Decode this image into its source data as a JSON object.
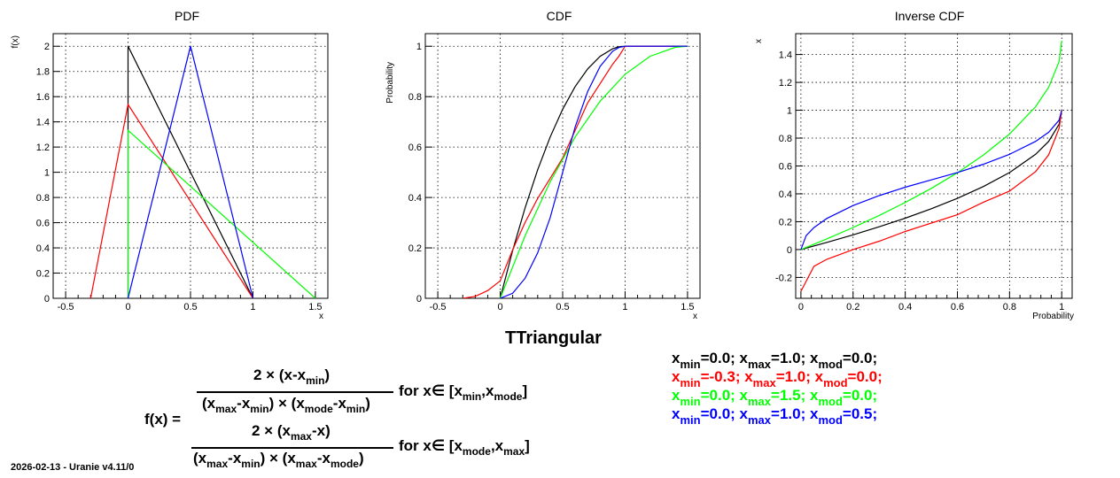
{
  "chart_data": [
    {
      "type": "line",
      "title": "PDF",
      "xlabel": "x",
      "ylabel": "f(x)",
      "xlim": [
        -0.6,
        1.6
      ],
      "ylim": [
        0,
        2.1
      ],
      "xticks": [
        -0.5,
        0,
        0.5,
        1,
        1.5
      ],
      "xtick_labels": [
        "-0.5",
        "0",
        "0.5",
        "1",
        "1.5"
      ],
      "yticks": [
        0,
        0.2,
        0.4,
        0.6,
        0.8,
        1,
        1.2,
        1.4,
        1.6,
        1.8,
        2
      ],
      "ytick_labels": [
        "0",
        "0.2",
        "0.4",
        "0.6",
        "0.8",
        "1",
        "1.2",
        "1.4",
        "1.6",
        "1.8",
        "2"
      ],
      "grid": true,
      "series": [
        {
          "color": "#000000",
          "x": [
            0,
            0,
            1
          ],
          "y": [
            0,
            2.0,
            0
          ]
        },
        {
          "color": "#ff0000",
          "x": [
            -0.3,
            0,
            1
          ],
          "y": [
            0,
            1.538,
            0
          ]
        },
        {
          "color": "#00ff00",
          "x": [
            0,
            0,
            1.5
          ],
          "y": [
            0,
            1.333,
            0
          ]
        },
        {
          "color": "#0000ff",
          "x": [
            0,
            0.5,
            1
          ],
          "y": [
            0,
            2.0,
            0
          ]
        }
      ]
    },
    {
      "type": "line",
      "title": "CDF",
      "xlabel": "x",
      "ylabel": "Probability",
      "xlim": [
        -0.6,
        1.6
      ],
      "ylim": [
        0,
        1.05
      ],
      "xticks": [
        -0.5,
        0,
        0.5,
        1,
        1.5
      ],
      "xtick_labels": [
        "-0.5",
        "0",
        "0.5",
        "1",
        "1.5"
      ],
      "yticks": [
        0,
        0.2,
        0.4,
        0.6,
        0.8,
        1
      ],
      "ytick_labels": [
        "0",
        "0.2",
        "0.4",
        "0.6",
        "0.8",
        "1"
      ],
      "grid": true,
      "series": [
        {
          "color": "#000000",
          "x": [
            0,
            0.1,
            0.2,
            0.3,
            0.4,
            0.5,
            0.6,
            0.7,
            0.8,
            0.9,
            0.95,
            1.0,
            1.5
          ],
          "y": [
            0,
            0.19,
            0.36,
            0.51,
            0.64,
            0.75,
            0.84,
            0.91,
            0.96,
            0.99,
            0.9975,
            1,
            1
          ]
        },
        {
          "color": "#ff0000",
          "x": [
            -0.3,
            -0.2,
            -0.1,
            0,
            0.1,
            0.2,
            0.3,
            0.4,
            0.5,
            0.6,
            0.7,
            0.8,
            0.9,
            0.95,
            1.0,
            1.5
          ],
          "y": [
            0,
            0.0077,
            0.0308,
            0.0692,
            0.1929,
            0.3018,
            0.396,
            0.4754,
            0.5562,
            0.6657,
            0.7751,
            0.8521,
            0.9284,
            0.9601,
            1,
            1
          ]
        },
        {
          "color": "#00ff00",
          "x": [
            0,
            0.2,
            0.4,
            0.6,
            0.8,
            1.0,
            1.2,
            1.4,
            1.5
          ],
          "y": [
            0,
            0.2489,
            0.4622,
            0.64,
            0.7822,
            0.8889,
            0.96,
            0.9956,
            1
          ]
        },
        {
          "color": "#0000ff",
          "x": [
            0,
            0.1,
            0.2,
            0.3,
            0.4,
            0.5,
            0.6,
            0.7,
            0.8,
            0.9,
            0.95,
            1.0,
            1.5
          ],
          "y": [
            0,
            0.02,
            0.08,
            0.18,
            0.32,
            0.5,
            0.68,
            0.82,
            0.92,
            0.98,
            0.995,
            1,
            1
          ]
        }
      ]
    },
    {
      "type": "line",
      "title": "Inverse CDF",
      "xlabel": "Probability",
      "ylabel": "x",
      "xlim": [
        -0.02,
        1.04
      ],
      "ylim": [
        -0.35,
        1.55
      ],
      "xticks": [
        0,
        0.2,
        0.4,
        0.6,
        0.8,
        1
      ],
      "xtick_labels": [
        "0",
        "0.2",
        "0.4",
        "0.6",
        "0.8",
        "1"
      ],
      "yticks": [
        -0.2,
        0,
        0.2,
        0.4,
        0.6,
        0.8,
        1,
        1.2,
        1.4
      ],
      "ytick_labels": [
        "-0.2",
        "0",
        "0.2",
        "0.4",
        "0.6",
        "0.8",
        "1",
        "1.2",
        "1.4"
      ],
      "grid": true,
      "series": [
        {
          "color": "#000000",
          "x": [
            0,
            0.1,
            0.2,
            0.3,
            0.4,
            0.5,
            0.6,
            0.7,
            0.8,
            0.9,
            0.95,
            0.99,
            1
          ],
          "y": [
            0,
            0.0513,
            0.1056,
            0.1633,
            0.2254,
            0.2929,
            0.3675,
            0.4523,
            0.5528,
            0.6838,
            0.7764,
            0.9,
            1
          ]
        },
        {
          "color": "#ff0000",
          "x": [
            0,
            0.05,
            0.1,
            0.2,
            0.3,
            0.4,
            0.5,
            0.6,
            0.7,
            0.8,
            0.9,
            0.95,
            0.99,
            1
          ],
          "y": [
            -0.3,
            -0.12,
            -0.07,
            0.0,
            0.06,
            0.13,
            0.19,
            0.25,
            0.34,
            0.42,
            0.56,
            0.68,
            0.87,
            1
          ]
        },
        {
          "color": "#00ff00",
          "x": [
            0,
            0.1,
            0.2,
            0.3,
            0.4,
            0.5,
            0.6,
            0.7,
            0.8,
            0.9,
            0.95,
            0.99,
            1
          ],
          "y": [
            0,
            0.077,
            0.1584,
            0.245,
            0.3381,
            0.4393,
            0.5513,
            0.6785,
            0.8292,
            1.0257,
            1.1646,
            1.35,
            1.5
          ]
        },
        {
          "color": "#0000ff",
          "x": [
            0,
            0.02,
            0.05,
            0.1,
            0.2,
            0.3,
            0.4,
            0.5,
            0.6,
            0.7,
            0.8,
            0.9,
            0.95,
            0.99,
            1
          ],
          "y": [
            0,
            0.1,
            0.158,
            0.2236,
            0.3162,
            0.3873,
            0.4472,
            0.5,
            0.5528,
            0.6127,
            0.6838,
            0.7764,
            0.8419,
            0.9293,
            1
          ]
        }
      ]
    }
  ],
  "main_title": "TTriangular",
  "footer": "2026-02-13 - Uranie v4.11/0",
  "formula": {
    "lhs": "f(x) =",
    "num1": "2 × (x-x",
    "num1_sub": "min",
    "num1_end": ")",
    "den1_a": "(x",
    "den1_a_sub": "max",
    "den1_b": "-x",
    "den1_b_sub": "min",
    "den1_c": ") × (x",
    "den1_c_sub": "mode",
    "den1_d": "-x",
    "den1_d_sub": "min",
    "den1_e": ")",
    "cond1_a": "for x∈ [x",
    "cond1_a_sub": "min",
    "cond1_b": ",x",
    "cond1_b_sub": "mode",
    "cond1_c": "]",
    "num2_a": "2 × (x",
    "num2_a_sub": "max",
    "num2_b": "-x)",
    "den2_a": "(x",
    "den2_a_sub": "max",
    "den2_b": "-x",
    "den2_b_sub": "min",
    "den2_c": ") × (x",
    "den2_c_sub": "max",
    "den2_d": "-x",
    "den2_d_sub": "mode",
    "den2_e": ")",
    "cond2_a": "for x∈  [x",
    "cond2_a_sub": "mode",
    "cond2_b": ",x",
    "cond2_b_sub": "max",
    "cond2_c": "]"
  },
  "legend": [
    {
      "color": "#000000",
      "p1": "x",
      "s1": "min",
      "v1": "=0.0;  x",
      "s2": "max",
      "v2": "=1.0;  x",
      "s3": "mod",
      "v3": "=0.0;"
    },
    {
      "color": "#ff0000",
      "p1": "x",
      "s1": "min",
      "v1": "=-0.3;  x",
      "s2": "max",
      "v2": "=1.0;  x",
      "s3": "mod",
      "v3": "=0.0;"
    },
    {
      "color": "#00ff00",
      "p1": "x",
      "s1": "min",
      "v1": "=0.0;  x",
      "s2": "max",
      "v2": "=1.5;  x",
      "s3": "mod",
      "v3": "=0.0;"
    },
    {
      "color": "#0000ff",
      "p1": "x",
      "s1": "min",
      "v1": "=0.0;  x",
      "s2": "max",
      "v2": "=1.0;  x",
      "s3": "mod",
      "v3": "=0.5;"
    }
  ]
}
